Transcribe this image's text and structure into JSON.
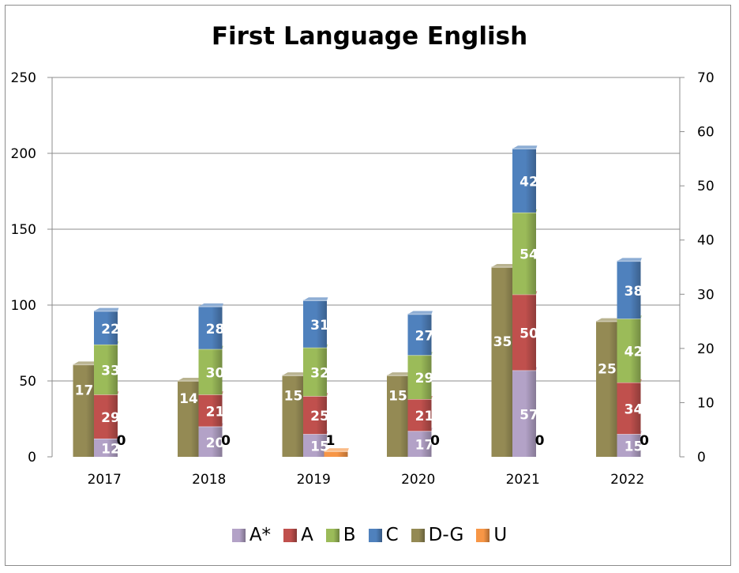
{
  "chart_data": {
    "type": "bar",
    "title": "First Language English",
    "categories": [
      "2017",
      "2018",
      "2019",
      "2020",
      "2021",
      "2022"
    ],
    "stacked_primary_axis": {
      "ylim": [
        0,
        250
      ],
      "yticks": [
        0,
        50,
        100,
        150,
        200,
        250
      ],
      "series": [
        {
          "name": "A*",
          "color": "#b3a2c7",
          "values": [
            12,
            20,
            15,
            17,
            57,
            15
          ]
        },
        {
          "name": "A",
          "color": "#c0504d",
          "values": [
            29,
            21,
            25,
            21,
            50,
            34
          ]
        },
        {
          "name": "B",
          "color": "#9bbb59",
          "values": [
            33,
            30,
            32,
            29,
            54,
            42
          ]
        },
        {
          "name": "C",
          "color": "#4f81bd",
          "values": [
            22,
            28,
            31,
            27,
            42,
            38
          ]
        }
      ]
    },
    "secondary_axis": {
      "ylim": [
        0,
        70
      ],
      "yticks": [
        0,
        10,
        20,
        30,
        40,
        50,
        60,
        70
      ],
      "series": [
        {
          "name": "D-G",
          "color": "#948a54",
          "values": [
            17,
            14,
            15,
            15,
            35,
            25
          ]
        },
        {
          "name": "U",
          "color": "#f79646",
          "values": [
            0,
            0,
            1,
            0,
            0,
            0
          ]
        }
      ]
    },
    "legend_position": "bottom",
    "grid": true
  },
  "legend": [
    {
      "label": "A*",
      "color": "#b3a2c7"
    },
    {
      "label": "A",
      "color": "#c0504d"
    },
    {
      "label": "B",
      "color": "#9bbb59"
    },
    {
      "label": "C",
      "color": "#4f81bd"
    },
    {
      "label": "D-G",
      "color": "#948a54"
    },
    {
      "label": "U",
      "color": "#f79646"
    }
  ]
}
